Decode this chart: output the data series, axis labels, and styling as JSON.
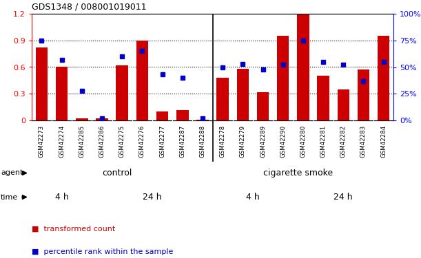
{
  "title": "GDS1348 / 008001019011",
  "samples": [
    "GSM42273",
    "GSM42274",
    "GSM42285",
    "GSM42286",
    "GSM42275",
    "GSM42276",
    "GSM42277",
    "GSM42287",
    "GSM42288",
    "GSM42278",
    "GSM42279",
    "GSM42289",
    "GSM42290",
    "GSM42280",
    "GSM42281",
    "GSM42282",
    "GSM42283",
    "GSM42284"
  ],
  "red_values": [
    0.82,
    0.6,
    0.02,
    0.02,
    0.62,
    0.9,
    0.1,
    0.12,
    0.01,
    0.48,
    0.58,
    0.32,
    0.95,
    1.2,
    0.5,
    0.35,
    0.57,
    0.95
  ],
  "blue_values": [
    75,
    57,
    28,
    2,
    60,
    65,
    43,
    40,
    2,
    50,
    53,
    48,
    52,
    75,
    55,
    52,
    37,
    55
  ],
  "ylim_left": [
    0,
    1.2
  ],
  "ylim_right": [
    0,
    100
  ],
  "yticks_left": [
    0,
    0.3,
    0.6,
    0.9,
    1.2
  ],
  "yticks_right": [
    0,
    25,
    50,
    75,
    100
  ],
  "control_color_light": "#AAFFAA",
  "control_color": "#66DD66",
  "smoke_color": "#33CC33",
  "time_4h_color": "#FF99FF",
  "time_24h_color": "#CC44CC",
  "bar_color": "#CC0000",
  "dot_color": "#0000CC",
  "xtick_bg_color": "#C8C8C8",
  "legend_red": "transformed count",
  "legend_blue": "percentile rank within the sample",
  "n_control": 9,
  "n_4h_ctrl": 3,
  "n_24h_ctrl": 6,
  "n_4h_smoke": 4,
  "n_24h_smoke": 5
}
